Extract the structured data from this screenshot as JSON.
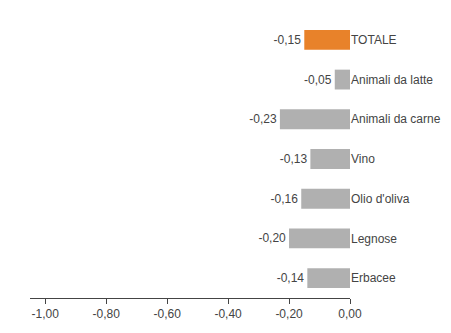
{
  "chart_data": {
    "type": "bar",
    "orientation": "horizontal",
    "categories": [
      "TOTALE",
      "Animali da latte",
      "Animali da carne",
      "Vino",
      "Olio d'oliva",
      "Legnose",
      "Erbacee"
    ],
    "values": [
      -0.15,
      -0.05,
      -0.23,
      -0.13,
      -0.16,
      -0.2,
      -0.14
    ],
    "value_labels": [
      "-0,15",
      "-0,05",
      "-0,23",
      "-0,13",
      "-0,16",
      "-0,20",
      "-0,14"
    ],
    "data_labels": true,
    "colors": [
      "#E8822A",
      "#B0B0B0",
      "#B0B0B0",
      "#B0B0B0",
      "#B0B0B0",
      "#B0B0B0",
      "#B0B0B0"
    ],
    "xlim": [
      -1.05,
      0.0
    ],
    "xticks": [
      {
        "value": -1.0,
        "label": "-1,00"
      },
      {
        "value": -0.8,
        "label": "-0,80"
      },
      {
        "value": -0.6,
        "label": "-0,60"
      },
      {
        "value": -0.4,
        "label": "-0,40"
      },
      {
        "value": -0.2,
        "label": "-0,20"
      },
      {
        "value": 0.0,
        "label": "0,00"
      }
    ],
    "grid": false
  }
}
